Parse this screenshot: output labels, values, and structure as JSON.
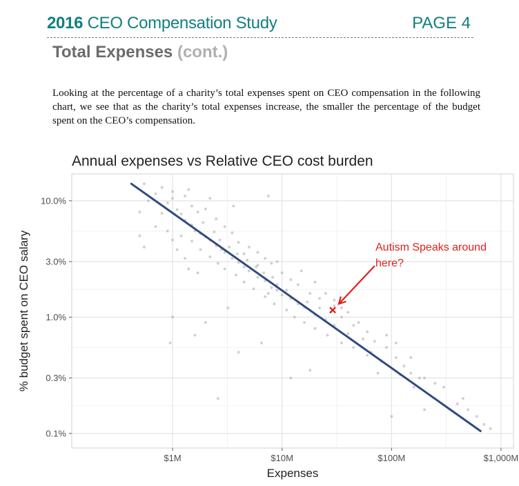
{
  "header": {
    "year": "2016",
    "study_title": "CEO Compensation Study",
    "page": "PAGE 4"
  },
  "section": {
    "title": "Total Expenses",
    "cont": "(cont.)"
  },
  "body_text": "Looking at the percentage of a charity’s total expenses spent on CEO compensation in the following chart, we see that as the charity’s total expenses increase, the smaller the percentage of the budget spent on the CEO’s compensation.",
  "chart_data": {
    "type": "scatter",
    "title": "Annual expenses vs Relative CEO cost burden",
    "xlabel": "Expenses",
    "ylabel": "% budget spent on CEO salary",
    "x_scale": "log",
    "y_scale": "log",
    "xlim": [
      120000,
      1300000000
    ],
    "ylim": [
      0.075,
      17
    ],
    "x_ticks": [
      {
        "value": 1000000,
        "label": "$1M"
      },
      {
        "value": 10000000,
        "label": "$10M"
      },
      {
        "value": 100000000,
        "label": "$100M"
      },
      {
        "value": 1000000000,
        "label": "$1,000M"
      }
    ],
    "y_ticks": [
      {
        "value": 0.1,
        "label": "0.1%"
      },
      {
        "value": 0.3,
        "label": "0.3%"
      },
      {
        "value": 1.0,
        "label": "1.0%"
      },
      {
        "value": 3.0,
        "label": "3.0%"
      },
      {
        "value": 10.0,
        "label": "10.0%"
      }
    ],
    "grid": true,
    "background": "#ebebeb",
    "points": [
      [
        900000,
        9.6
      ],
      [
        1000000,
        10.5
      ],
      [
        1100000,
        8.4
      ],
      [
        1200000,
        7.7
      ],
      [
        800000,
        7.8
      ],
      [
        1300000,
        6.8
      ],
      [
        1500000,
        6.2
      ],
      [
        1600000,
        5.5
      ],
      [
        1800000,
        5.2
      ],
      [
        2000000,
        4.9
      ],
      [
        2200000,
        4.6
      ],
      [
        2500000,
        4.1
      ],
      [
        2800000,
        3.8
      ],
      [
        3000000,
        3.6
      ],
      [
        3500000,
        3.2
      ],
      [
        4000000,
        2.95
      ],
      [
        4500000,
        2.7
      ],
      [
        5000000,
        2.5
      ],
      [
        6000000,
        2.2
      ],
      [
        7000000,
        2.05
      ],
      [
        8000000,
        1.8
      ],
      [
        9000000,
        1.7
      ],
      [
        10000000,
        1.55
      ],
      [
        12000000,
        1.45
      ],
      [
        14000000,
        1.3
      ],
      [
        16000000,
        1.22
      ],
      [
        20000000,
        1.05
      ],
      [
        25000000,
        0.95
      ],
      [
        30000000,
        0.85
      ],
      [
        40000000,
        0.72
      ],
      [
        700000,
        11.5
      ],
      [
        600000,
        10.0
      ],
      [
        1000000,
        12.0
      ],
      [
        1300000,
        11.0
      ],
      [
        1500000,
        9.0
      ],
      [
        2000000,
        8.5
      ],
      [
        2500000,
        7.0
      ],
      [
        3000000,
        6.0
      ],
      [
        3500000,
        5.3
      ],
      [
        4000000,
        4.4
      ],
      [
        5000000,
        4.0
      ],
      [
        6000000,
        3.6
      ],
      [
        7000000,
        3.2
      ],
      [
        8000000,
        2.9
      ],
      [
        10000000,
        2.4
      ],
      [
        12000000,
        2.1
      ],
      [
        14000000,
        1.9
      ],
      [
        18000000,
        1.6
      ],
      [
        22000000,
        1.45
      ],
      [
        30000000,
        1.25
      ],
      [
        1200000,
        5.0
      ],
      [
        1500000,
        4.5
      ],
      [
        1800000,
        3.8
      ],
      [
        2200000,
        3.3
      ],
      [
        2600000,
        2.9
      ],
      [
        3000000,
        2.6
      ],
      [
        3800000,
        2.3
      ],
      [
        4500000,
        2.0
      ],
      [
        5500000,
        1.75
      ],
      [
        7000000,
        1.5
      ],
      [
        8500000,
        1.3
      ],
      [
        11000000,
        1.15
      ],
      [
        13000000,
        1.0
      ],
      [
        16000000,
        0.9
      ],
      [
        20000000,
        0.8
      ],
      [
        26000000,
        0.7
      ],
      [
        35000000,
        0.6
      ],
      [
        45000000,
        0.55
      ],
      [
        60000000,
        0.47
      ],
      [
        80000000,
        0.42
      ],
      [
        500000,
        8.0
      ],
      [
        500000,
        5.0
      ],
      [
        550000,
        4.0
      ],
      [
        700000,
        6.0
      ],
      [
        900000,
        5.5
      ],
      [
        1000000,
        4.6
      ],
      [
        1100000,
        3.8
      ],
      [
        1300000,
        3.2
      ],
      [
        1400000,
        2.6
      ],
      [
        1700000,
        2.4
      ],
      [
        50000000,
        0.9
      ],
      [
        60000000,
        0.75
      ],
      [
        70000000,
        0.62
      ],
      [
        90000000,
        0.55
      ],
      [
        110000000,
        0.45
      ],
      [
        130000000,
        0.38
      ],
      [
        150000000,
        0.33
      ],
      [
        200000000,
        0.3
      ],
      [
        250000000,
        0.27
      ],
      [
        300000000,
        0.25
      ],
      [
        40000000,
        1.1
      ],
      [
        35000000,
        1.0
      ],
      [
        45000000,
        0.85
      ],
      [
        55000000,
        0.65
      ],
      [
        65000000,
        0.5
      ],
      [
        110000000,
        0.6
      ],
      [
        120000000,
        0.32
      ],
      [
        160000000,
        0.25
      ],
      [
        180000000,
        0.3
      ],
      [
        400000000,
        0.18
      ],
      [
        500000000,
        0.16
      ],
      [
        600000000,
        0.14
      ],
      [
        450000000,
        0.2
      ],
      [
        800000000,
        0.11
      ],
      [
        700000000,
        0.12
      ],
      [
        100000000,
        0.14
      ],
      [
        200000000,
        0.16
      ],
      [
        150000000,
        0.45
      ],
      [
        90000000,
        0.7
      ],
      [
        75000000,
        0.33
      ],
      [
        1000000,
        1.0
      ],
      [
        950000,
        0.6
      ],
      [
        1600000,
        0.7
      ],
      [
        2600000,
        0.2
      ],
      [
        4000000,
        0.5
      ],
      [
        6500000,
        0.6
      ],
      [
        12000000,
        0.3
      ],
      [
        18000000,
        0.35
      ],
      [
        3200000,
        1.2
      ],
      [
        2000000,
        0.9
      ],
      [
        550000,
        14.0
      ],
      [
        800000,
        13.0
      ],
      [
        1400000,
        12.5
      ],
      [
        2200000,
        10.5
      ],
      [
        3600000,
        9.0
      ],
      [
        7500000,
        11.0
      ],
      [
        4500000,
        3.5
      ],
      [
        6000000,
        2.8
      ],
      [
        9000000,
        3.0
      ],
      [
        15000000,
        2.5
      ],
      [
        20000000,
        2.0
      ],
      [
        25000000,
        1.6
      ],
      [
        30000000,
        1.4
      ],
      [
        35000000,
        1.2
      ],
      [
        28000000,
        1.1
      ],
      [
        22000000,
        1.2
      ],
      [
        17000000,
        1.35
      ],
      [
        11000000,
        1.7
      ],
      [
        9000000,
        1.9
      ],
      [
        7500000,
        1.6
      ],
      [
        1700000,
        8.0
      ],
      [
        1900000,
        6.5
      ],
      [
        2400000,
        5.4
      ],
      [
        2700000,
        4.6
      ],
      [
        3300000,
        4.0
      ],
      [
        3900000,
        3.5
      ],
      [
        4800000,
        3.1
      ],
      [
        5800000,
        2.7
      ],
      [
        6800000,
        2.4
      ],
      [
        8200000,
        2.2
      ]
    ],
    "fit_line": {
      "x": [
        420000,
        650000000
      ],
      "y": [
        14.0,
        0.105
      ]
    },
    "annotation": {
      "text_lines": [
        "Autism Speaks around",
        "here?"
      ],
      "marker": "x",
      "marker_x": 29000000,
      "marker_y": 1.15
    },
    "colors": {
      "points": "#9a9a9a",
      "fit_line": "#2f4a7d",
      "annotation": "#e0201a",
      "header_teal": "#127f7f"
    }
  }
}
